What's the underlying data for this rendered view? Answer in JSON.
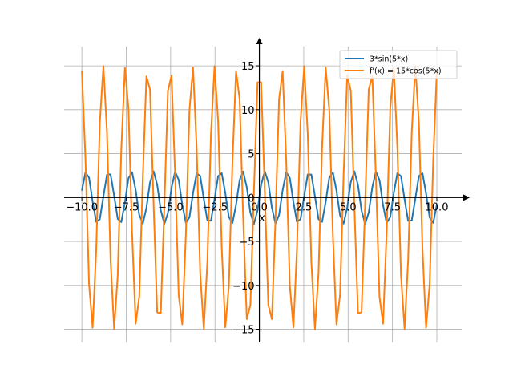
{
  "chart_data": {
    "type": "line",
    "title": "",
    "xlabel": "x",
    "ylabel": "",
    "xlim": [
      -11,
      11.4
    ],
    "ylim": [
      -16.5,
      17.2
    ],
    "x_ticks": [
      -10.0,
      -7.5,
      -5.0,
      -2.5,
      0.0,
      2.5,
      5.0,
      7.5,
      10.0
    ],
    "x_tick_labels": [
      "−10.0",
      "−7.5",
      "−5.0",
      "−2.5",
      "0.0",
      "2.5",
      "5.0",
      "7.5",
      "10.0"
    ],
    "y_ticks": [
      -15,
      -10,
      -5,
      0,
      5,
      10,
      15
    ],
    "y_tick_labels": [
      "−15",
      "−10",
      "−5",
      "0",
      "5",
      "10",
      "15"
    ],
    "grid": true,
    "legend_position": "top-right",
    "x_sampling": {
      "start": -10,
      "end": 10,
      "count": 100
    },
    "series": [
      {
        "name": "3*sin(5*x)",
        "expression": "3*sin(5*x)",
        "color": "#1f77b4"
      },
      {
        "name": "f'(x) = 15*cos(5*x)",
        "expression": "15*cos(5*x)",
        "color": "#ff7f0e"
      }
    ]
  }
}
